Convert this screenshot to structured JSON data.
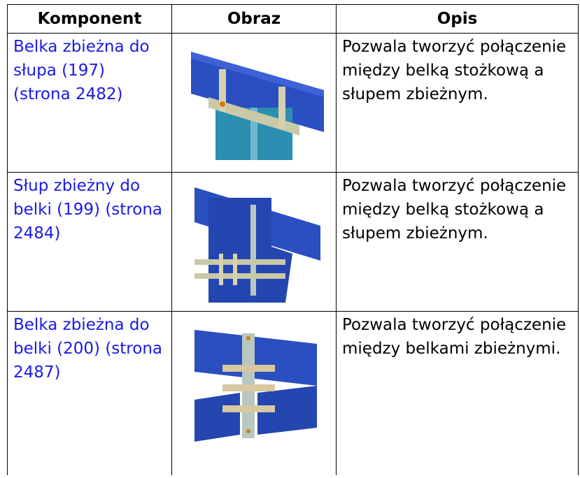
{
  "header": {
    "columns": [
      "Komponent",
      "Obraz",
      "Opis"
    ]
  },
  "table": {
    "rows": [
      {
        "component": "Belka zbieżna do słupa (197) (strona 2482)",
        "description": "Pozwala tworzyć połączenie między belką stożkową a słupem zbieżnym."
      },
      {
        "component": "Słup zbieżny do belki (199) (strona 2484)",
        "description": "Pozwala tworzyć połączenie między belką stożkową a słupem zbieżnym."
      },
      {
        "component": "Belka zbieżna do belki (200) (strona 2487)",
        "description": "Pozwala tworzyć połączenie między belkami zbieżnymi."
      }
    ]
  }
}
